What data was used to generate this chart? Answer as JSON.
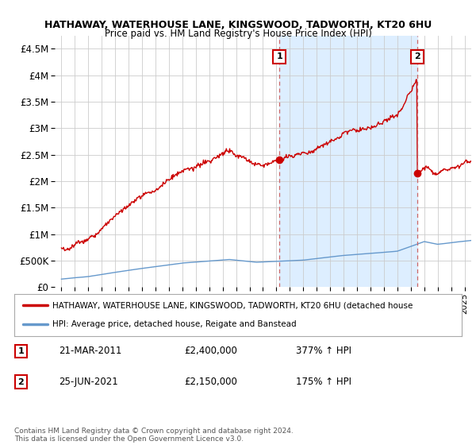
{
  "title": "HATHAWAY, WATERHOUSE LANE, KINGSWOOD, TADWORTH, KT20 6HU",
  "subtitle": "Price paid vs. HM Land Registry's House Price Index (HPI)",
  "legend_label_red": "HATHAWAY, WATERHOUSE LANE, KINGSWOOD, TADWORTH, KT20 6HU (detached house",
  "legend_label_blue": "HPI: Average price, detached house, Reigate and Banstead",
  "footnote": "Contains HM Land Registry data © Crown copyright and database right 2024.\nThis data is licensed under the Open Government Licence v3.0.",
  "annotation1_label": "1",
  "annotation1_date": "21-MAR-2011",
  "annotation1_price": "£2,400,000",
  "annotation1_hpi": "377% ↑ HPI",
  "annotation2_label": "2",
  "annotation2_date": "25-JUN-2021",
  "annotation2_price": "£2,150,000",
  "annotation2_hpi": "175% ↑ HPI",
  "sale1_x": 2011.22,
  "sale1_y": 2400000,
  "sale2_x": 2021.49,
  "sale2_y": 2150000,
  "vline1_x": 2011.22,
  "vline2_x": 2021.49,
  "ylim": [
    0,
    4750000
  ],
  "xlim": [
    1994.5,
    2025.5
  ],
  "yticks": [
    0,
    500000,
    1000000,
    1500000,
    2000000,
    2500000,
    3000000,
    3500000,
    4000000,
    4500000
  ],
  "ytick_labels": [
    "£0",
    "£500K",
    "£1M",
    "£1.5M",
    "£2M",
    "£2.5M",
    "£3M",
    "£3.5M",
    "£4M",
    "£4.5M"
  ],
  "xticks": [
    1995,
    1996,
    1997,
    1998,
    1999,
    2000,
    2001,
    2002,
    2003,
    2004,
    2005,
    2006,
    2007,
    2008,
    2009,
    2010,
    2011,
    2012,
    2013,
    2014,
    2015,
    2016,
    2017,
    2018,
    2019,
    2020,
    2021,
    2022,
    2023,
    2024,
    2025
  ],
  "red_color": "#cc0000",
  "blue_color": "#6699cc",
  "shade_color": "#ddeeff",
  "vline_color": "#cc6666",
  "background_color": "#ffffff",
  "grid_color": "#cccccc"
}
